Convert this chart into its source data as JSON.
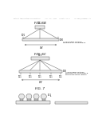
{
  "bg_color": "#ffffff",
  "header_text": "Patent Application Publication     Jun. 17, 2014   Sheet 4 of 7     US 2014/0160457 A1",
  "fig6b_label": "FIG. 6B",
  "fig6c_label": "FIG. 6C",
  "fig7_label": "FIG. 7",
  "gray": "#666666",
  "black": "#111111",
  "light_gray": "#e8e8e8",
  "mid_gray": "#cccccc"
}
